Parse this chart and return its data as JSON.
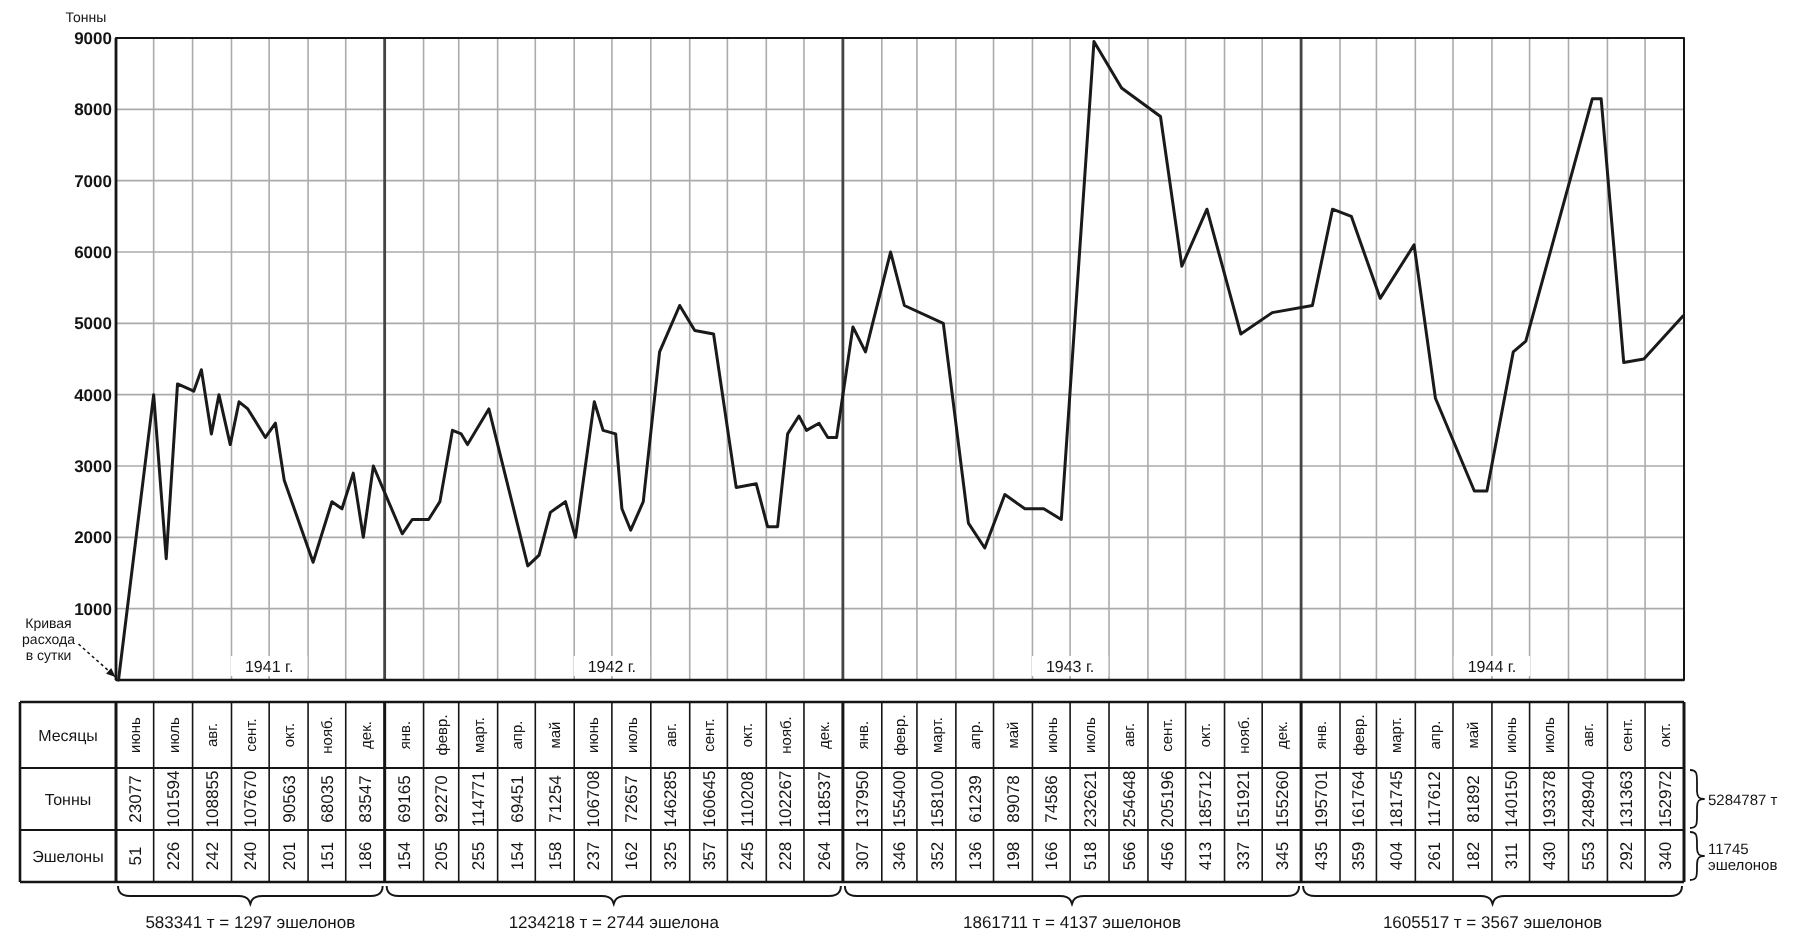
{
  "chart_data": [
    {
      "type": "line",
      "ylabel": "Тонны",
      "series": [
        {
          "name": "Кривая расхода в сутки",
          "color": "#1a1a1a",
          "x": [
            "1941-06-03",
            "1941-07-01",
            "1941-07-11",
            "1941-07-20",
            "1941-08-02",
            "1941-08-08",
            "1941-08-16",
            "1941-08-22",
            "1941-08-31",
            "1941-09-07",
            "1941-09-14",
            "1941-09-28",
            "1941-10-06",
            "1941-10-13",
            "1941-11-05",
            "1941-11-20",
            "1941-11-28",
            "1941-12-07",
            "1941-12-15",
            "1941-12-23",
            "1942-01-15",
            "1942-01-23",
            "1942-02-05",
            "1942-02-14",
            "1942-02-24",
            "1942-03-03",
            "1942-03-08",
            "1942-03-25",
            "1942-04-25",
            "1942-05-04",
            "1942-05-13",
            "1942-05-25",
            "1942-06-02",
            "1942-06-17",
            "1942-06-24",
            "1942-07-04",
            "1942-07-09",
            "1942-07-16",
            "1942-07-26",
            "1942-08-08",
            "1942-08-24",
            "1942-09-05",
            "1942-09-20",
            "1942-10-08",
            "1942-10-24",
            "1942-11-02",
            "1942-11-10",
            "1942-11-18",
            "1942-11-27",
            "1942-12-03",
            "1942-12-13",
            "1942-12-20",
            "1942-12-27",
            "1943-01-09",
            "1943-01-19",
            "1943-02-08",
            "1943-02-19",
            "1943-03-22",
            "1943-04-11",
            "1943-04-24",
            "1943-05-10",
            "1943-05-26",
            "1943-06-10",
            "1943-06-24",
            "1943-07-20",
            "1943-08-11",
            "1943-09-11",
            "1943-09-28",
            "1943-10-18",
            "1943-11-14",
            "1943-12-09",
            "1944-01-10",
            "1944-01-26",
            "1944-02-10",
            "1944-03-04",
            "1944-03-31",
            "1944-04-17",
            "1944-05-18",
            "1944-05-28",
            "1944-06-18",
            "1944-06-28",
            "1944-08-20",
            "1944-08-27",
            "1944-09-14",
            "1944-09-30",
            "1944-10-31"
          ],
          "values": [
            0,
            4000,
            1700,
            4150,
            4050,
            4350,
            3450,
            4000,
            3300,
            3900,
            3800,
            3400,
            3600,
            2800,
            1650,
            2500,
            2400,
            2900,
            2000,
            3000,
            2050,
            2250,
            2250,
            2500,
            3500,
            3450,
            3300,
            3800,
            1600,
            1750,
            2350,
            2500,
            2000,
            3900,
            3500,
            3450,
            2400,
            2100,
            2500,
            4600,
            5250,
            4900,
            4850,
            2700,
            2750,
            2150,
            2150,
            3450,
            3700,
            3500,
            3600,
            3400,
            3400,
            4950,
            4600,
            6000,
            5250,
            5000,
            2200,
            1850,
            2600,
            2400,
            2400,
            2250,
            8950,
            8300,
            7900,
            5800,
            6600,
            4850,
            5150,
            5250,
            6600,
            6500,
            5350,
            6100,
            3950,
            2650,
            2650,
            4600,
            4750,
            8150,
            8150,
            4450,
            4500,
            5100
          ]
        }
      ],
      "xlim": [
        "1941-06-01",
        "1944-11-01"
      ],
      "xticks": [
        {
          "value": "1941-06",
          "label": null
        },
        {
          "value": "1941-07",
          "label": null
        },
        {
          "value": "1941-08",
          "label": null
        },
        {
          "value": "1941-09",
          "label": null
        },
        {
          "value": "1941-10",
          "label": "1941 г."
        },
        {
          "value": "1941-11",
          "label": null
        },
        {
          "value": "1941-12",
          "label": null
        },
        {
          "value": "1942-01",
          "label": null
        },
        {
          "value": "1942-02",
          "label": null
        },
        {
          "value": "1942-03",
          "label": null
        },
        {
          "value": "1942-04",
          "label": null
        },
        {
          "value": "1942-05",
          "label": null
        },
        {
          "value": "1942-06",
          "label": null
        },
        {
          "value": "1942-07",
          "label": "1942 г."
        },
        {
          "value": "1942-08",
          "label": null
        },
        {
          "value": "1942-09",
          "label": null
        },
        {
          "value": "1942-10",
          "label": null
        },
        {
          "value": "1942-11",
          "label": null
        },
        {
          "value": "1942-12",
          "label": null
        },
        {
          "value": "1943-01",
          "label": null
        },
        {
          "value": "1943-02",
          "label": null
        },
        {
          "value": "1943-03",
          "label": null
        },
        {
          "value": "1943-04",
          "label": null
        },
        {
          "value": "1943-05",
          "label": null
        },
        {
          "value": "1943-06",
          "label": null
        },
        {
          "value": "1943-07",
          "label": "1943 г."
        },
        {
          "value": "1943-08",
          "label": null
        },
        {
          "value": "1943-09",
          "label": null
        },
        {
          "value": "1943-10",
          "label": null
        },
        {
          "value": "1943-11",
          "label": null
        },
        {
          "value": "1943-12",
          "label": null
        },
        {
          "value": "1944-01",
          "label": null
        },
        {
          "value": "1944-02",
          "label": null
        },
        {
          "value": "1944-03",
          "label": null
        },
        {
          "value": "1944-04",
          "label": null
        },
        {
          "value": "1944-05",
          "label": null
        },
        {
          "value": "1944-06",
          "label": "1944 г."
        },
        {
          "value": "1944-07",
          "label": null
        },
        {
          "value": "1944-08",
          "label": null
        },
        {
          "value": "1944-09",
          "label": null
        },
        {
          "value": "1944-10",
          "label": null
        },
        {
          "value": "1944-11",
          "label": null
        }
      ],
      "ylim": [
        0,
        9000
      ],
      "yticks": [
        1000,
        2000,
        3000,
        4000,
        5000,
        6000,
        7000,
        8000,
        9000
      ],
      "grid": true
    },
    {
      "type": "other",
      "xlabel": "Месяцы",
      "categories": [
        "июнь",
        "июль",
        "авг.",
        "сент.",
        "окт.",
        "нояб.",
        "дек.",
        "янв.",
        "февр.",
        "март.",
        "апр.",
        "май",
        "июнь",
        "июль",
        "авг.",
        "сент.",
        "окт.",
        "нояб.",
        "дек.",
        "янв.",
        "февр.",
        "март.",
        "апр.",
        "май",
        "июнь",
        "июль",
        "авг.",
        "сент.",
        "окт.",
        "нояб.",
        "дек.",
        "янв.",
        "февр.",
        "март.",
        "апр.",
        "май",
        "июнь",
        "июль",
        "авг.",
        "сент.",
        "окт."
      ],
      "series": [
        {
          "name": "Тонны",
          "values": [
            23077,
            101594,
            108855,
            107670,
            90563,
            68035,
            83547,
            69165,
            92270,
            114771,
            69451,
            71254,
            106708,
            72657,
            146285,
            160645,
            110208,
            102267,
            118537,
            137950,
            155400,
            158100,
            61239,
            89078,
            74586,
            232621,
            254648,
            205196,
            185712,
            151921,
            155260,
            195701,
            161764,
            181745,
            117612,
            81892,
            140150,
            193378,
            248940,
            131363,
            152972
          ]
        },
        {
          "name": "Эшелоны",
          "values": [
            51,
            226,
            242,
            240,
            201,
            151,
            186,
            154,
            205,
            255,
            154,
            158,
            237,
            162,
            325,
            357,
            245,
            228,
            264,
            307,
            346,
            352,
            136,
            198,
            166,
            518,
            566,
            456,
            413,
            337,
            345,
            435,
            359,
            404,
            261,
            182,
            311,
            430,
            553,
            292,
            340
          ]
        }
      ],
      "data_labels": true,
      "annotations": [
        "583341 т = 1297 эшелонов",
        "1234218 т = 2744 эшелона",
        "1861711 т = 4137 эшелонов",
        "1605517 т = 3567 эшелонов",
        "5284787 т",
        "11745 эшелонов"
      ]
    }
  ]
}
